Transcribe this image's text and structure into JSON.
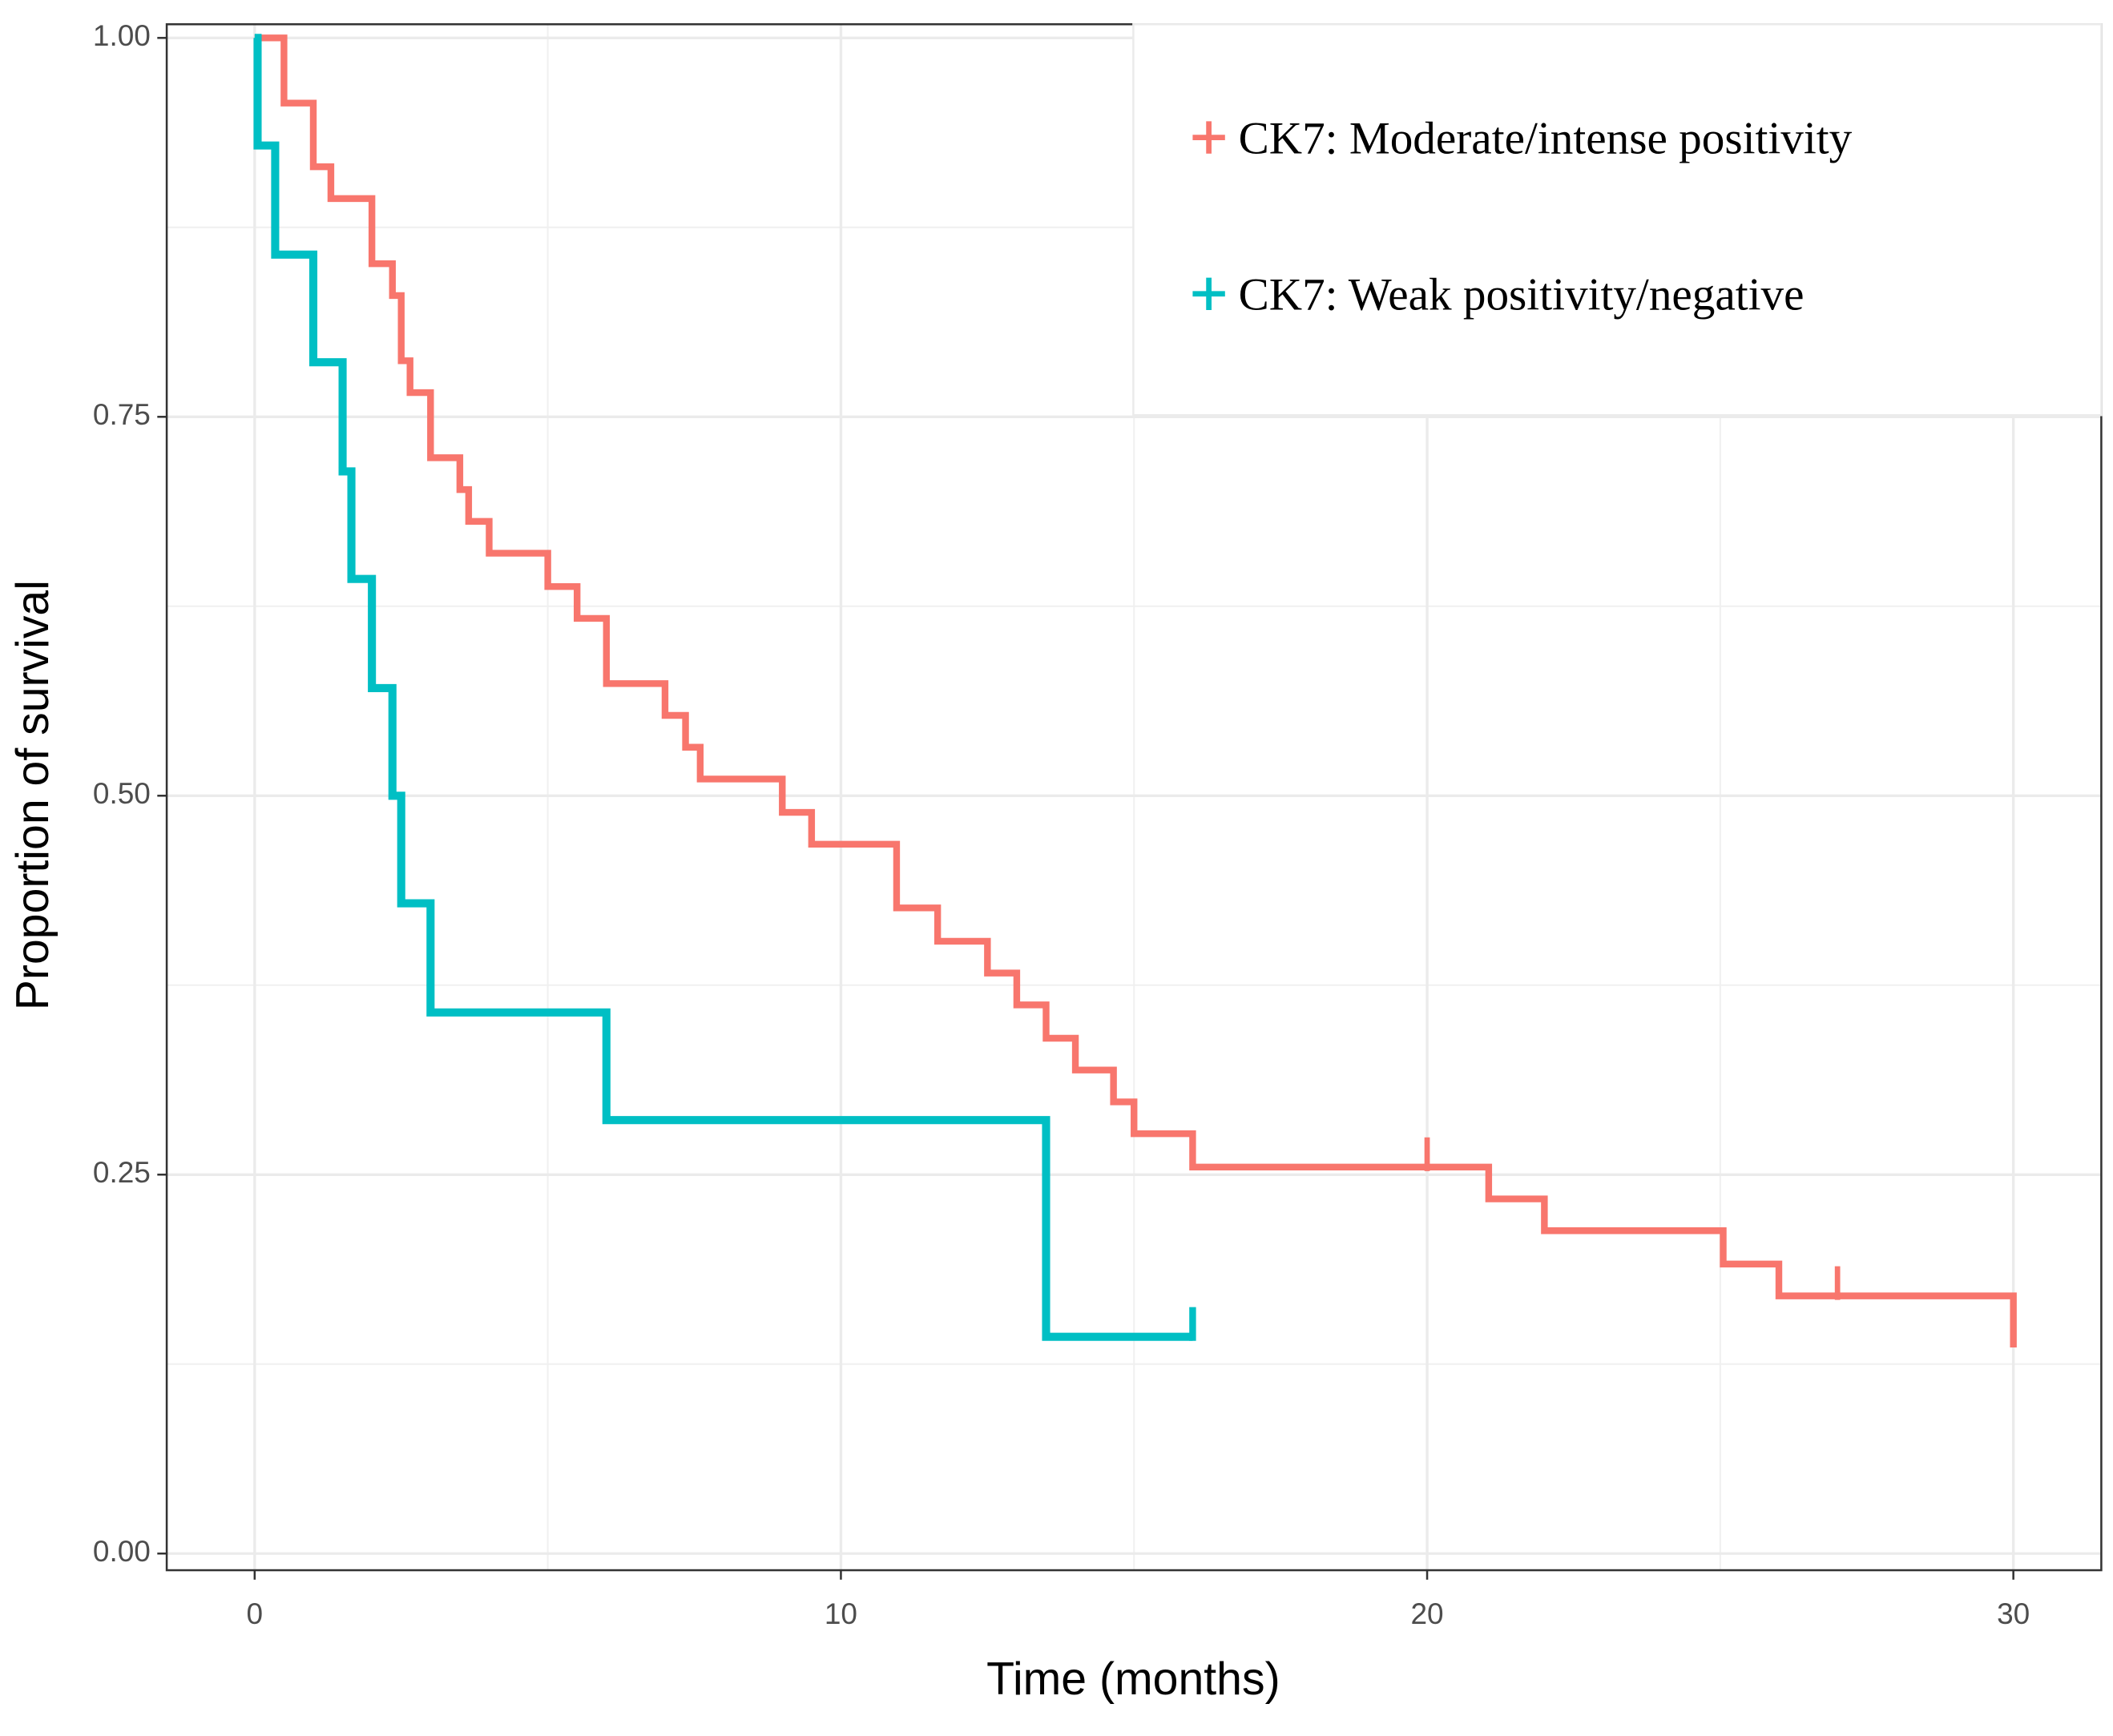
{
  "chart_data": {
    "type": "survival",
    "x_label": "Time (months)",
    "y_label": "Proportion of survival",
    "xlim": [
      -1.5,
      31.5
    ],
    "ylim": [
      -0.011,
      1.009
    ],
    "xticks": [
      0,
      10,
      20,
      30
    ],
    "yticks": [
      {
        "value": 0,
        "label": "0.00"
      },
      {
        "value": 0.25,
        "label": "0.25"
      },
      {
        "value": 0.5,
        "label": "0.50"
      },
      {
        "value": 0.75,
        "label": "0.75"
      },
      {
        "value": 1,
        "label": "1.00"
      }
    ],
    "xminor": [
      5,
      15,
      25
    ],
    "yminor": [
      0.125,
      0.375,
      0.625,
      0.875
    ],
    "grid": true,
    "legend": "top-right",
    "series": [
      {
        "name": "CK7: Moderate/intense positivity",
        "color": "#f8766d",
        "x": [
          0,
          0.5,
          1.0,
          1.3,
          2.0,
          2.35,
          2.5,
          2.65,
          3.0,
          3.5,
          3.65,
          4.0,
          5.0,
          5.5,
          6.0,
          7.0,
          7.35,
          7.6,
          9.0,
          9.5,
          10.95,
          11.65,
          12.5,
          13.0,
          13.5,
          14.0,
          14.65,
          15.0,
          16.0,
          21.05,
          22.0,
          25.05,
          26.0,
          30.0
        ],
        "values": [
          1.0,
          0.957,
          0.915,
          0.894,
          0.851,
          0.83,
          0.787,
          0.766,
          0.723,
          0.702,
          0.681,
          0.66,
          0.638,
          0.617,
          0.574,
          0.553,
          0.532,
          0.511,
          0.489,
          0.468,
          0.426,
          0.404,
          0.383,
          0.362,
          0.34,
          0.319,
          0.298,
          0.277,
          0.255,
          0.234,
          0.213,
          0.191,
          0.17,
          0.136
        ],
        "censored": [
          20,
          27
        ]
      },
      {
        "name": "CK7: Weak positivity/negative",
        "color": "#00bfc4",
        "x": [
          0,
          0.05,
          0.35,
          1.0,
          1.5,
          1.65,
          2.0,
          2.35,
          2.5,
          3.0,
          6.0,
          13.5
        ],
        "values": [
          1.0,
          0.929,
          0.857,
          0.786,
          0.714,
          0.643,
          0.571,
          0.5,
          0.429,
          0.357,
          0.286,
          0.143
        ],
        "censored": [
          16
        ]
      }
    ]
  }
}
